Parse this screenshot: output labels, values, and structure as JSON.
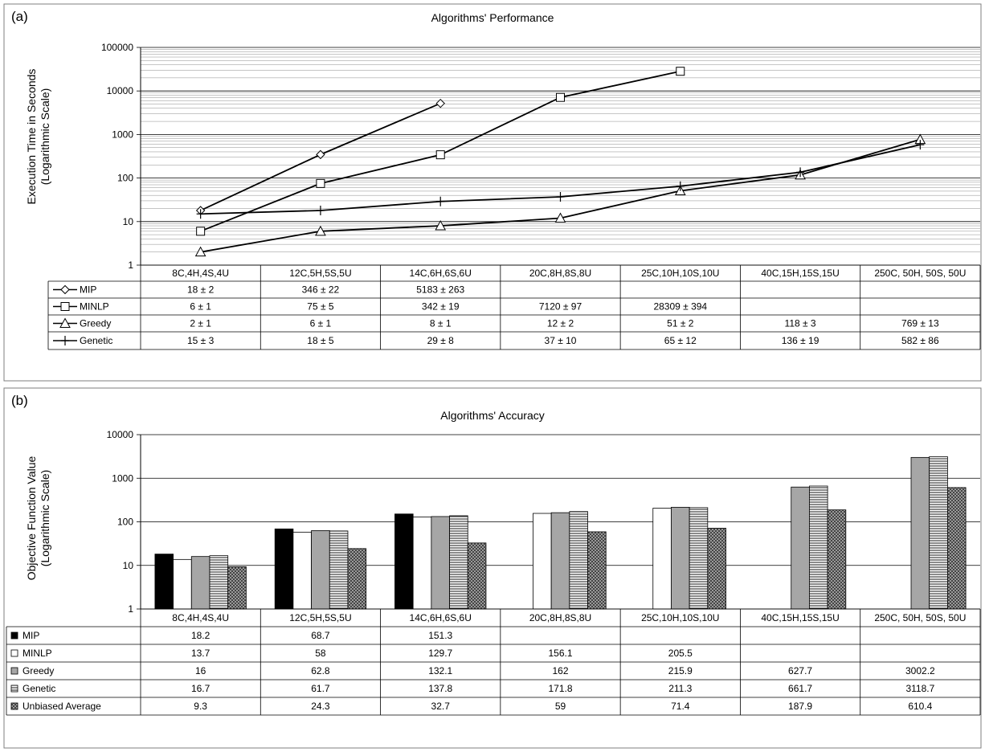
{
  "chart_data": [
    {
      "type": "line",
      "panel_label": "(a)",
      "title": "Algorithms' Performance",
      "ylabel": [
        "Execution Time in Seconds",
        "(Logarithmic Scale)"
      ],
      "yscale": "log",
      "ylim": [
        1,
        100000
      ],
      "y_ticks": [
        "1",
        "10",
        "100",
        "1000",
        "10000",
        "100000"
      ],
      "grid": true,
      "categories": [
        "8C,4H,4S,4U",
        "12C,5H,5S,5U",
        "14C,6H,6S,6U",
        "20C,8H,8S,8U",
        "25C,10H,10S,10U",
        "40C,15H,15S,15U",
        "250C, 50H, 50S, 50U"
      ],
      "series": [
        {
          "name": "MIP",
          "marker": "diamond",
          "values": [
            18,
            346,
            5183,
            null,
            null,
            null,
            null
          ],
          "labels": [
            "18 ± 2",
            "346 ± 22",
            "5183 ± 263",
            "",
            "",
            "",
            ""
          ]
        },
        {
          "name": "MINLP",
          "marker": "square",
          "values": [
            6,
            75,
            342,
            7120,
            28309,
            null,
            null
          ],
          "labels": [
            "6 ± 1",
            "75 ± 5",
            "342 ± 19",
            "7120 ± 97",
            "28309 ± 394",
            "",
            ""
          ]
        },
        {
          "name": "Greedy",
          "marker": "triangle",
          "values": [
            2,
            6,
            8,
            12,
            51,
            118,
            769
          ],
          "labels": [
            "2 ± 1",
            "6 ± 1",
            "8 ± 1",
            "12 ± 2",
            "51 ± 2",
            "118 ± 3",
            "769 ± 13"
          ]
        },
        {
          "name": "Genetic",
          "marker": "plus",
          "values": [
            15,
            18,
            29,
            37,
            65,
            136,
            582
          ],
          "labels": [
            "15 ± 3",
            "18 ± 5",
            "29 ± 8",
            "37 ± 10",
            "65 ± 12",
            "136 ± 19",
            "582 ± 86"
          ]
        }
      ]
    },
    {
      "type": "bar",
      "panel_label": "(b)",
      "title": "Algorithms' Accuracy",
      "ylabel": [
        "Objective Function Value",
        "(Logarithmic Scale)"
      ],
      "yscale": "log",
      "ylim": [
        1,
        10000
      ],
      "y_ticks": [
        "1",
        "10",
        "100",
        "1000",
        "10000"
      ],
      "grid": true,
      "categories": [
        "8C,4H,4S,4U",
        "12C,5H,5S,5U",
        "14C,6H,6S,6U",
        "20C,8H,8S,8U",
        "25C,10H,10S,10U",
        "40C,15H,15S,15U",
        "250C, 50H, 50S, 50U"
      ],
      "series": [
        {
          "name": "MIP",
          "fill": "#000000",
          "pattern": "solid",
          "values": [
            18.2,
            68.7,
            151.3,
            null,
            null,
            null,
            null
          ],
          "labels": [
            "18.2",
            "68.7",
            "151.3",
            "",
            "",
            "",
            ""
          ]
        },
        {
          "name": "MINLP",
          "fill": "#ffffff",
          "pattern": "solid",
          "values": [
            13.7,
            58,
            129.7,
            156.1,
            205.5,
            null,
            null
          ],
          "labels": [
            "13.7",
            "58",
            "129.7",
            "156.1",
            "205.5",
            "",
            ""
          ]
        },
        {
          "name": "Greedy",
          "fill": "#a6a6a6",
          "pattern": "solid",
          "values": [
            16,
            62.8,
            132.1,
            162,
            215.9,
            627.7,
            3002.2
          ],
          "labels": [
            "16",
            "62.8",
            "132.1",
            "162",
            "215.9",
            "627.7",
            "3002.2"
          ]
        },
        {
          "name": "Genetic",
          "fill": "#ffffff",
          "pattern": "horizontal-lines",
          "values": [
            16.7,
            61.7,
            137.8,
            171.8,
            211.3,
            661.7,
            3118.7
          ],
          "labels": [
            "16.7",
            "61.7",
            "137.8",
            "171.8",
            "211.3",
            "661.7",
            "3118.7"
          ]
        },
        {
          "name": "Unbiased Average",
          "fill": "#555555",
          "pattern": "checker",
          "values": [
            9.3,
            24.3,
            32.7,
            59,
            71.4,
            187.9,
            610.4
          ],
          "labels": [
            "9.3",
            "24.3",
            "32.7",
            "59",
            "71.4",
            "187.9",
            "610.4"
          ]
        }
      ]
    }
  ]
}
